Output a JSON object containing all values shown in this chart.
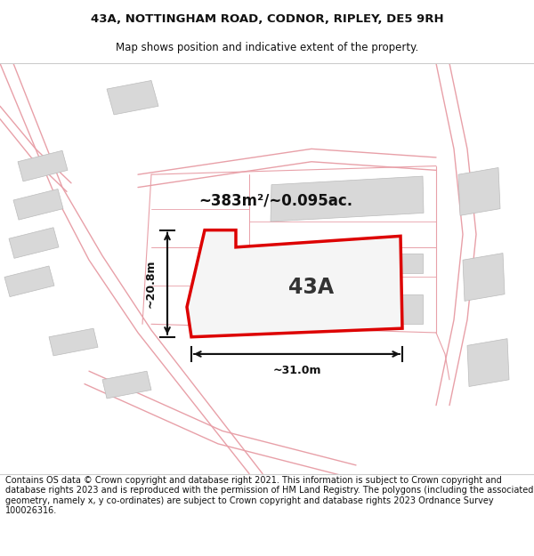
{
  "title_line1": "43A, NOTTINGHAM ROAD, CODNOR, RIPLEY, DE5 9RH",
  "title_line2": "Map shows position and indicative extent of the property.",
  "area_label": "~383m²/~0.095ac.",
  "property_label": "43A",
  "dim_width": "~31.0m",
  "dim_height": "~20.8m",
  "footer_text": "Contains OS data © Crown copyright and database right 2021. This information is subject to Crown copyright and database rights 2023 and is reproduced with the permission of HM Land Registry. The polygons (including the associated geometry, namely x, y co-ordinates) are subject to Crown copyright and database rights 2023 Ordnance Survey 100026316.",
  "bg_color": "#ffffff",
  "map_bg": "#ffffff",
  "road_line_color": "#e8a0a8",
  "building_color": "#d8d8d8",
  "property_fill": "#f5f5f5",
  "property_outline": "#dd0000",
  "dim_color": "#111111",
  "title_fontsize1": 9.5,
  "title_fontsize2": 8.5,
  "area_fontsize": 12,
  "label_fontsize": 17,
  "dim_fontsize": 9,
  "footer_fontsize": 7.0
}
